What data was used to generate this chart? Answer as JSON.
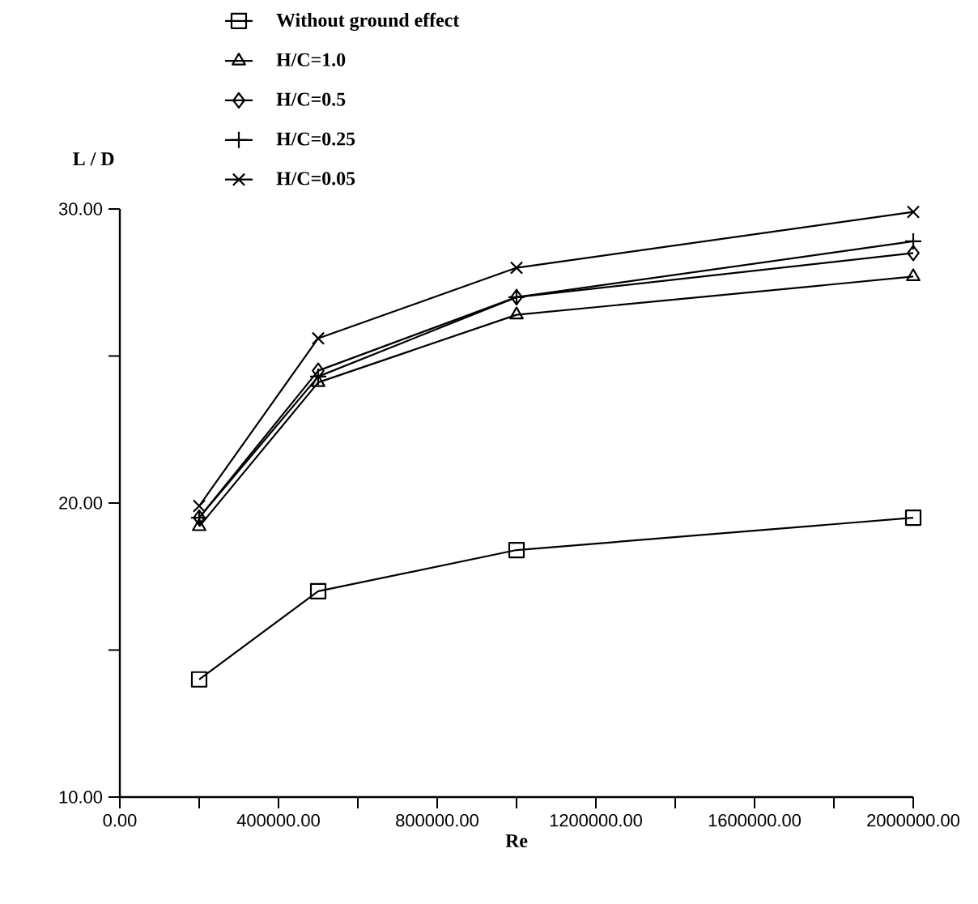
{
  "chart_data": {
    "type": "line",
    "xlabel": "Re",
    "ylabel": "L / D",
    "x": [
      200000,
      500000,
      1000000,
      2000000
    ],
    "series": [
      {
        "name": "Without ground effect",
        "color": "#000000",
        "marker": "square",
        "values": [
          14.0,
          17.0,
          18.4,
          19.5
        ]
      },
      {
        "name": "H/C=1.0",
        "color": "#000000",
        "marker": "triangle",
        "values": [
          19.2,
          24.1,
          26.4,
          27.7
        ]
      },
      {
        "name": "H/C=0.5",
        "color": "#000000",
        "marker": "diamond",
        "values": [
          19.5,
          24.5,
          27.0,
          28.5
        ]
      },
      {
        "name": "H/C=0.25",
        "color": "#000000",
        "marker": "plus",
        "values": [
          19.5,
          24.3,
          27.0,
          28.9
        ]
      },
      {
        "name": "H/C=0.05",
        "color": "#000000",
        "marker": "cross",
        "values": [
          19.9,
          25.6,
          28.0,
          29.9
        ]
      }
    ],
    "xlim": [
      0,
      2000000
    ],
    "xticks": [
      {
        "value": 0,
        "label": "0.00"
      },
      {
        "value": 200000,
        "label": null
      },
      {
        "value": 400000,
        "label": "400000.00"
      },
      {
        "value": 600000,
        "label": null
      },
      {
        "value": 800000,
        "label": "800000.00"
      },
      {
        "value": 1000000,
        "label": null
      },
      {
        "value": 1200000,
        "label": "1200000.00"
      },
      {
        "value": 1400000,
        "label": null
      },
      {
        "value": 1600000,
        "label": "1600000.00"
      },
      {
        "value": 1800000,
        "label": null
      },
      {
        "value": 2000000,
        "label": "2000000.00"
      }
    ],
    "ylim": [
      10,
      30
    ],
    "yticks": [
      {
        "value": 10,
        "label": "10.00"
      },
      {
        "value": 15,
        "label": null
      },
      {
        "value": 20,
        "label": "20.00"
      },
      {
        "value": 25,
        "label": null
      },
      {
        "value": 30,
        "label": "30.00"
      }
    ],
    "legend": "top",
    "grid": false,
    "line_style": "solid"
  }
}
